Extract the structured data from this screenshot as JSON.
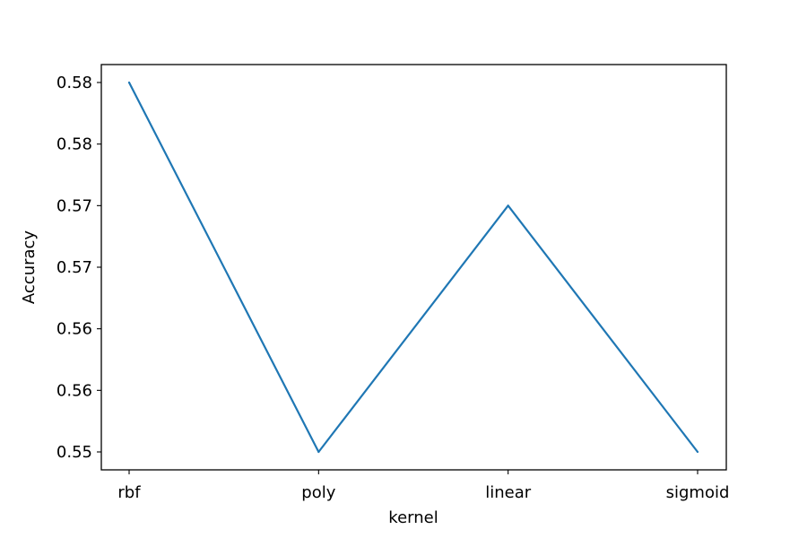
{
  "chart_data": {
    "type": "line",
    "categories": [
      "rbf",
      "poly",
      "linear",
      "sigmoid"
    ],
    "series": [
      {
        "values": [
          0.58,
          0.55,
          0.57,
          0.55
        ]
      }
    ],
    "xlabel": "kernel",
    "ylabel": "Accuracy",
    "ylim": [
      0.5485,
      0.5815
    ],
    "yticks": [
      0.55,
      0.555,
      0.56,
      0.565,
      0.57,
      0.575,
      0.58
    ],
    "ytick_labels": [
      "0.55",
      "0.56",
      "0.56",
      "0.57",
      "0.57",
      "0.58",
      "0.58"
    ],
    "grid": false,
    "line_color": "#1f77b4"
  }
}
